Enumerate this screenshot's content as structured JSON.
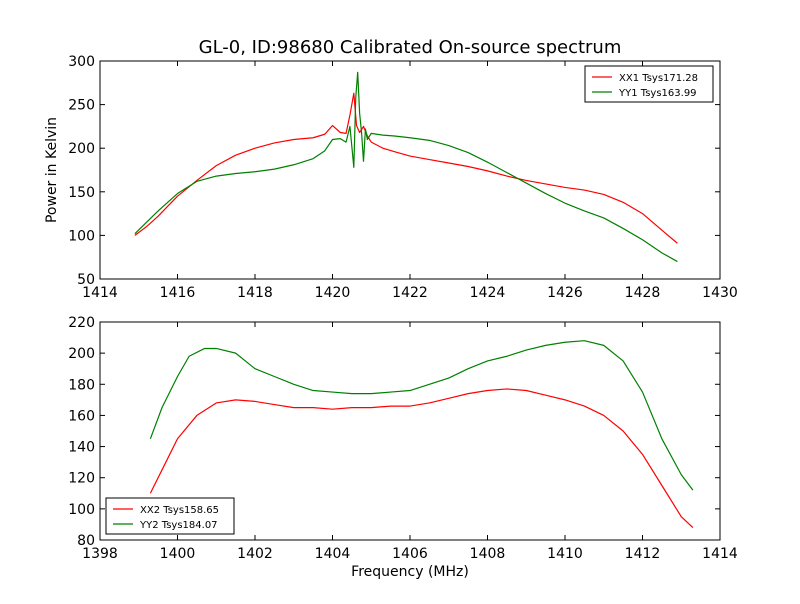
{
  "figure": {
    "title": "GL-0, ID:98680 Calibrated On-source spectrum"
  },
  "chart_data": [
    {
      "type": "line",
      "title": "GL-0, ID:98680 Calibrated On-source spectrum",
      "xlabel": "",
      "ylabel": "Power in Kelvin",
      "xlim": [
        1414,
        1430
      ],
      "ylim": [
        50,
        300
      ],
      "xticks": [
        1414,
        1416,
        1418,
        1420,
        1422,
        1424,
        1426,
        1428,
        1430
      ],
      "yticks": [
        50,
        100,
        150,
        200,
        250,
        300
      ],
      "grid": false,
      "legend": "top-right",
      "series": [
        {
          "name": "XX1 Tsys171.28",
          "color": "#ff0000",
          "x": [
            1414.9,
            1415.2,
            1415.5,
            1416.0,
            1416.5,
            1417.0,
            1417.5,
            1418.0,
            1418.5,
            1419.0,
            1419.5,
            1419.8,
            1420.0,
            1420.2,
            1420.35,
            1420.45,
            1420.55,
            1420.62,
            1420.7,
            1420.8,
            1420.9,
            1421.0,
            1421.3,
            1421.6,
            1422.0,
            1422.5,
            1423.0,
            1423.5,
            1424.0,
            1424.5,
            1425.0,
            1425.5,
            1426.0,
            1426.5,
            1427.0,
            1427.5,
            1428.0,
            1428.5,
            1428.9
          ],
          "y": [
            100,
            110,
            122,
            145,
            163,
            180,
            192,
            200,
            206,
            210,
            212,
            216,
            226,
            218,
            217,
            238,
            263,
            226,
            218,
            225,
            214,
            207,
            200,
            196,
            191,
            187,
            183,
            179,
            174,
            168,
            163,
            159,
            155,
            152,
            147,
            138,
            125,
            106,
            91
          ]
        },
        {
          "name": "YY1 Tsys163.99",
          "color": "#008000",
          "x": [
            1414.9,
            1415.2,
            1415.5,
            1416.0,
            1416.5,
            1417.0,
            1417.5,
            1418.0,
            1418.5,
            1419.0,
            1419.5,
            1419.8,
            1420.0,
            1420.2,
            1420.35,
            1420.45,
            1420.55,
            1420.6,
            1420.65,
            1420.7,
            1420.75,
            1420.8,
            1420.85,
            1420.9,
            1421.0,
            1421.3,
            1421.6,
            1422.0,
            1422.5,
            1423.0,
            1423.5,
            1424.0,
            1424.5,
            1425.0,
            1425.5,
            1426.0,
            1426.5,
            1427.0,
            1427.5,
            1428.0,
            1428.5,
            1428.9
          ],
          "y": [
            102,
            115,
            128,
            148,
            162,
            168,
            171,
            173,
            176,
            181,
            188,
            197,
            210,
            211,
            207,
            225,
            178,
            258,
            287,
            240,
            218,
            185,
            222,
            210,
            217,
            215,
            214,
            212,
            209,
            203,
            195,
            184,
            172,
            160,
            148,
            137,
            128,
            120,
            108,
            95,
            80,
            70
          ]
        }
      ]
    },
    {
      "type": "line",
      "title": "",
      "xlabel": "Frequency (MHz)",
      "ylabel": "",
      "xlim": [
        1398,
        1414
      ],
      "ylim": [
        80,
        220
      ],
      "xticks": [
        1398,
        1400,
        1402,
        1404,
        1406,
        1408,
        1410,
        1412,
        1414
      ],
      "yticks": [
        80,
        100,
        120,
        140,
        160,
        180,
        200,
        220
      ],
      "grid": false,
      "legend": "bottom-left",
      "series": [
        {
          "name": "XX2 Tsys158.65",
          "color": "#ff0000",
          "x": [
            1399.3,
            1399.6,
            1400.0,
            1400.5,
            1401.0,
            1401.5,
            1402.0,
            1402.5,
            1403.0,
            1403.5,
            1404.0,
            1404.5,
            1405.0,
            1405.5,
            1406.0,
            1406.5,
            1407.0,
            1407.5,
            1408.0,
            1408.5,
            1409.0,
            1409.5,
            1410.0,
            1410.5,
            1411.0,
            1411.5,
            1412.0,
            1412.5,
            1413.0,
            1413.3
          ],
          "y": [
            110,
            125,
            145,
            160,
            168,
            170,
            169,
            167,
            165,
            165,
            164,
            165,
            165,
            166,
            166,
            168,
            171,
            174,
            176,
            177,
            176,
            173,
            170,
            166,
            160,
            150,
            135,
            115,
            95,
            88
          ]
        },
        {
          "name": "YY2 Tsys184.07",
          "color": "#008000",
          "x": [
            1399.3,
            1399.6,
            1400.0,
            1400.3,
            1400.7,
            1401.0,
            1401.5,
            1402.0,
            1402.5,
            1403.0,
            1403.5,
            1404.0,
            1404.5,
            1405.0,
            1405.5,
            1406.0,
            1406.5,
            1407.0,
            1407.5,
            1408.0,
            1408.5,
            1409.0,
            1409.5,
            1410.0,
            1410.5,
            1411.0,
            1411.5,
            1412.0,
            1412.5,
            1413.0,
            1413.3
          ],
          "y": [
            145,
            165,
            185,
            198,
            203,
            203,
            200,
            190,
            185,
            180,
            176,
            175,
            174,
            174,
            175,
            176,
            180,
            184,
            190,
            195,
            198,
            202,
            205,
            207,
            208,
            205,
            195,
            175,
            145,
            122,
            112
          ]
        }
      ]
    }
  ]
}
